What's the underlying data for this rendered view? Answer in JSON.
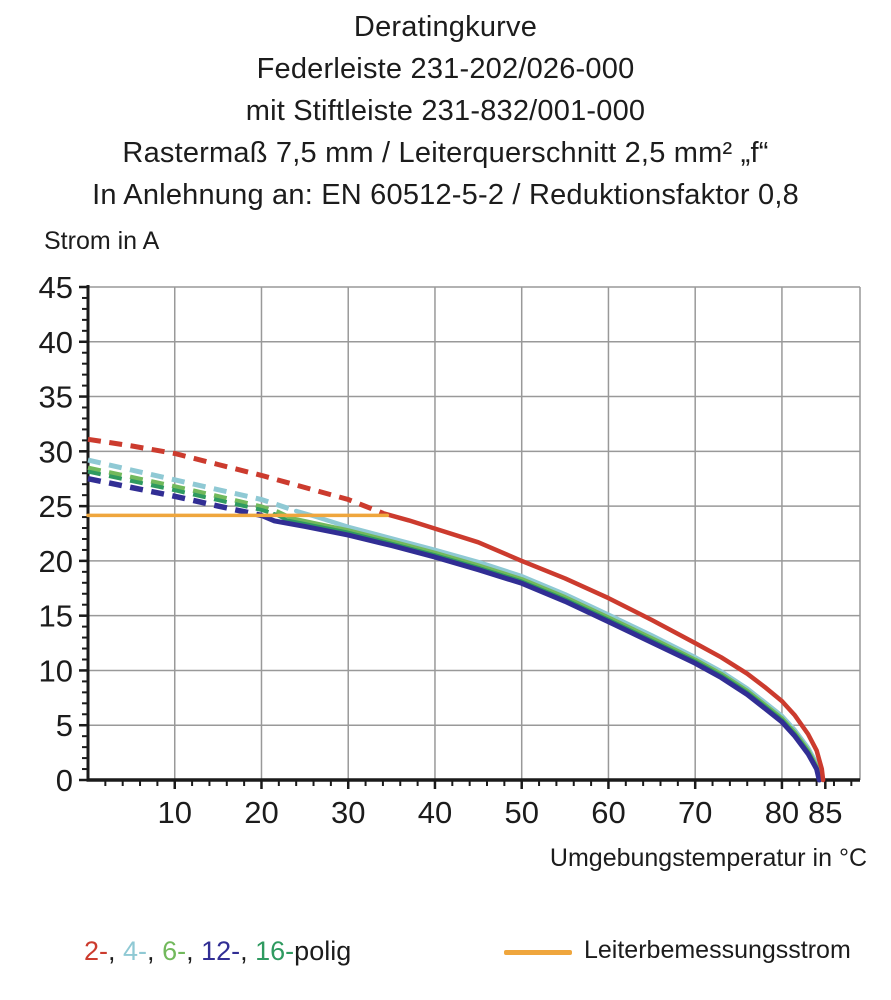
{
  "title": {
    "lines": [
      "Deratingkurve",
      "Federleiste 231-202/026-000",
      "mit Stiftleiste 231-832/001-000",
      "Rastermaß 7,5 mm / Leiterquerschnitt 2,5 mm² „f“",
      "In Anlehnung an: EN 60512-5-2 / Reduktionsfaktor 0,8"
    ]
  },
  "chart_data": {
    "type": "line",
    "title": "Deratingkurve",
    "xlabel": "Umgebungstemperatur in °C",
    "ylabel": "Strom in A",
    "xlim": [
      0,
      89
    ],
    "ylim": [
      0,
      45
    ],
    "grid": true,
    "x_tick_labels": [
      10,
      20,
      30,
      40,
      50,
      60,
      70,
      80,
      85
    ],
    "x_gridlines": [
      10,
      20,
      30,
      40,
      50,
      60,
      70,
      80
    ],
    "y_tick_labels": [
      0,
      5,
      10,
      15,
      20,
      25,
      30,
      35,
      40,
      45
    ],
    "y_gridlines": [
      5,
      10,
      15,
      20,
      25,
      30,
      35,
      40,
      45
    ],
    "x_minor_step": 2,
    "y_minor_step": 1,
    "colors": {
      "grid": "#999999",
      "axis": "#1a1a1a",
      "red": "#cc3b2e",
      "cyan": "#8fc9d4",
      "green": "#72b95c",
      "darkgreen": "#2f9a60",
      "navy": "#312e94",
      "orange": "#efa63d"
    },
    "series": [
      {
        "name": "4-polig",
        "color": "#8fc9d4",
        "width": 4.5,
        "dashed_points": [
          [
            0,
            29.2
          ],
          [
            5,
            28.3
          ],
          [
            10,
            27.4
          ],
          [
            15,
            26.5
          ],
          [
            20,
            25.6
          ],
          [
            24,
            24.55
          ]
        ],
        "solid_points": [
          [
            24,
            24.55
          ],
          [
            26,
            24.1
          ],
          [
            30,
            23.1
          ],
          [
            35,
            22.05
          ],
          [
            40,
            21.0
          ],
          [
            45,
            19.9
          ],
          [
            50,
            18.6
          ],
          [
            55,
            16.95
          ],
          [
            60,
            15.1
          ],
          [
            65,
            13.2
          ],
          [
            70,
            11.2
          ],
          [
            73,
            9.9
          ],
          [
            76,
            8.35
          ],
          [
            78,
            7.1
          ],
          [
            80,
            5.85
          ],
          [
            81.5,
            4.55
          ],
          [
            83,
            2.95
          ],
          [
            84,
            1.5
          ],
          [
            84.45,
            0
          ]
        ]
      },
      {
        "name": "6-polig",
        "color": "#72b95c",
        "width": 4,
        "dashed_points": [
          [
            0,
            28.5
          ],
          [
            5,
            27.65
          ],
          [
            10,
            26.8
          ],
          [
            15,
            25.9
          ],
          [
            20,
            24.95
          ],
          [
            22,
            24.45
          ]
        ],
        "solid_points": [
          [
            22,
            24.45
          ],
          [
            23.5,
            23.9
          ],
          [
            30,
            22.8
          ],
          [
            35,
            21.8
          ],
          [
            40,
            20.75
          ],
          [
            45,
            19.6
          ],
          [
            50,
            18.35
          ],
          [
            55,
            16.7
          ],
          [
            60,
            14.85
          ],
          [
            65,
            12.95
          ],
          [
            70,
            11.0
          ],
          [
            73,
            9.7
          ],
          [
            76,
            8.15
          ],
          [
            78,
            6.9
          ],
          [
            80,
            5.65
          ],
          [
            81.5,
            4.35
          ],
          [
            83,
            2.75
          ],
          [
            84,
            1.3
          ],
          [
            84.4,
            0
          ]
        ]
      },
      {
        "name": "16-polig",
        "color": "#2f9a60",
        "width": 3.5,
        "dashed_points": [
          [
            0,
            28.15
          ],
          [
            5,
            27.3
          ],
          [
            10,
            26.45
          ],
          [
            15,
            25.55
          ],
          [
            20,
            24.65
          ],
          [
            21.5,
            24.3
          ]
        ],
        "solid_points": [
          [
            21.5,
            24.3
          ],
          [
            23,
            23.7
          ],
          [
            30,
            22.6
          ],
          [
            35,
            21.6
          ],
          [
            40,
            20.55
          ],
          [
            45,
            19.4
          ],
          [
            50,
            18.15
          ],
          [
            55,
            16.5
          ],
          [
            60,
            14.65
          ],
          [
            65,
            12.75
          ],
          [
            70,
            10.85
          ],
          [
            73,
            9.55
          ],
          [
            76,
            8.0
          ],
          [
            78,
            6.75
          ],
          [
            80,
            5.5
          ],
          [
            81.5,
            4.2
          ],
          [
            83,
            2.6
          ],
          [
            84,
            1.15
          ],
          [
            84.35,
            0
          ]
        ]
      },
      {
        "name": "12-polig",
        "color": "#312e94",
        "width": 5,
        "dashed_points": [
          [
            0,
            27.5
          ],
          [
            5,
            26.7
          ],
          [
            10,
            25.9
          ],
          [
            15,
            25.0
          ],
          [
            20,
            24.15
          ]
        ],
        "solid_points": [
          [
            20,
            24.15
          ],
          [
            21.5,
            23.65
          ],
          [
            25,
            23.15
          ],
          [
            30,
            22.35
          ],
          [
            35,
            21.4
          ],
          [
            40,
            20.35
          ],
          [
            45,
            19.2
          ],
          [
            50,
            17.95
          ],
          [
            55,
            16.3
          ],
          [
            60,
            14.45
          ],
          [
            65,
            12.55
          ],
          [
            70,
            10.65
          ],
          [
            73,
            9.35
          ],
          [
            76,
            7.8
          ],
          [
            78,
            6.55
          ],
          [
            80,
            5.3
          ],
          [
            81.5,
            4.0
          ],
          [
            83,
            2.4
          ],
          [
            84,
            1.0
          ],
          [
            84.3,
            0
          ]
        ]
      },
      {
        "name": "2-polig",
        "color": "#cc3b2e",
        "width": 4.5,
        "dashed_points": [
          [
            0,
            31.1
          ],
          [
            5,
            30.5
          ],
          [
            10,
            29.8
          ],
          [
            15,
            28.8
          ],
          [
            20,
            27.8
          ],
          [
            25,
            26.7
          ],
          [
            30,
            25.6
          ],
          [
            34,
            24.35
          ]
        ],
        "solid_points": [
          [
            34,
            24.35
          ],
          [
            37,
            23.7
          ],
          [
            40,
            22.95
          ],
          [
            45,
            21.7
          ],
          [
            50,
            20.0
          ],
          [
            55,
            18.4
          ],
          [
            60,
            16.6
          ],
          [
            65,
            14.6
          ],
          [
            70,
            12.5
          ],
          [
            73,
            11.2
          ],
          [
            76,
            9.7
          ],
          [
            78,
            8.5
          ],
          [
            80,
            7.2
          ],
          [
            81.5,
            5.9
          ],
          [
            83,
            4.2
          ],
          [
            84,
            2.7
          ],
          [
            84.6,
            1.0
          ],
          [
            84.75,
            0
          ]
        ]
      },
      {
        "name": "Leiterbemessungsstrom",
        "color": "#efa63d",
        "width": 3.5,
        "solid_points": [
          [
            0,
            24.15
          ],
          [
            34.5,
            24.15
          ]
        ]
      }
    ]
  },
  "legend": {
    "poles": [
      {
        "label": "2-",
        "color": "#cc3b2e"
      },
      {
        "label": "4-",
        "color": "#8fc9d4"
      },
      {
        "label": "6-",
        "color": "#72b95c"
      },
      {
        "label": "12-",
        "color": "#312e94"
      },
      {
        "label": "16-",
        "color": "#2f9a60"
      }
    ],
    "separator": ", ",
    "suffix": "polig",
    "rated_current": {
      "label": "Leiterbemessungsstrom",
      "color": "#efa63d"
    }
  }
}
